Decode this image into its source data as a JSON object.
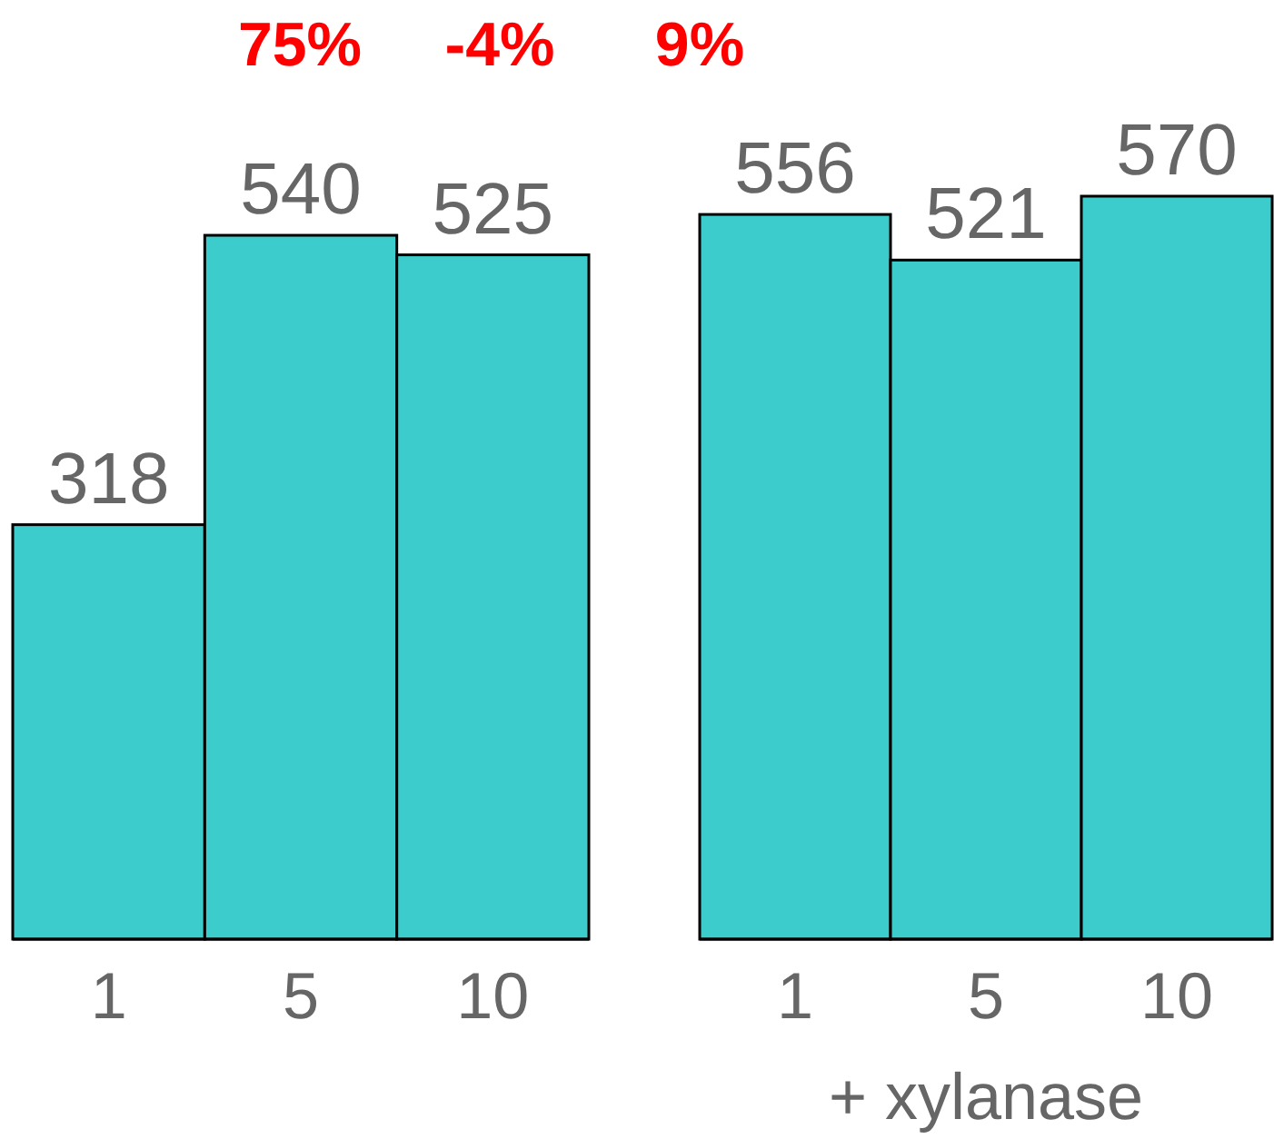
{
  "chart_data": [
    {
      "type": "bar",
      "categories": [
        "1",
        "5",
        "10"
      ],
      "series": [
        {
          "color": "#3ccccc",
          "values": [
            318,
            540,
            525
          ]
        }
      ],
      "data_labels": true,
      "annotations": [
        "75%",
        "-4%",
        "9%"
      ]
    },
    {
      "type": "bar",
      "categories": [
        "1",
        "5",
        "10"
      ],
      "xlabel": "+ xylanase",
      "series": [
        {
          "color": "#3ccccc",
          "values": [
            556,
            521,
            570
          ]
        }
      ],
      "data_labels": true
    }
  ]
}
